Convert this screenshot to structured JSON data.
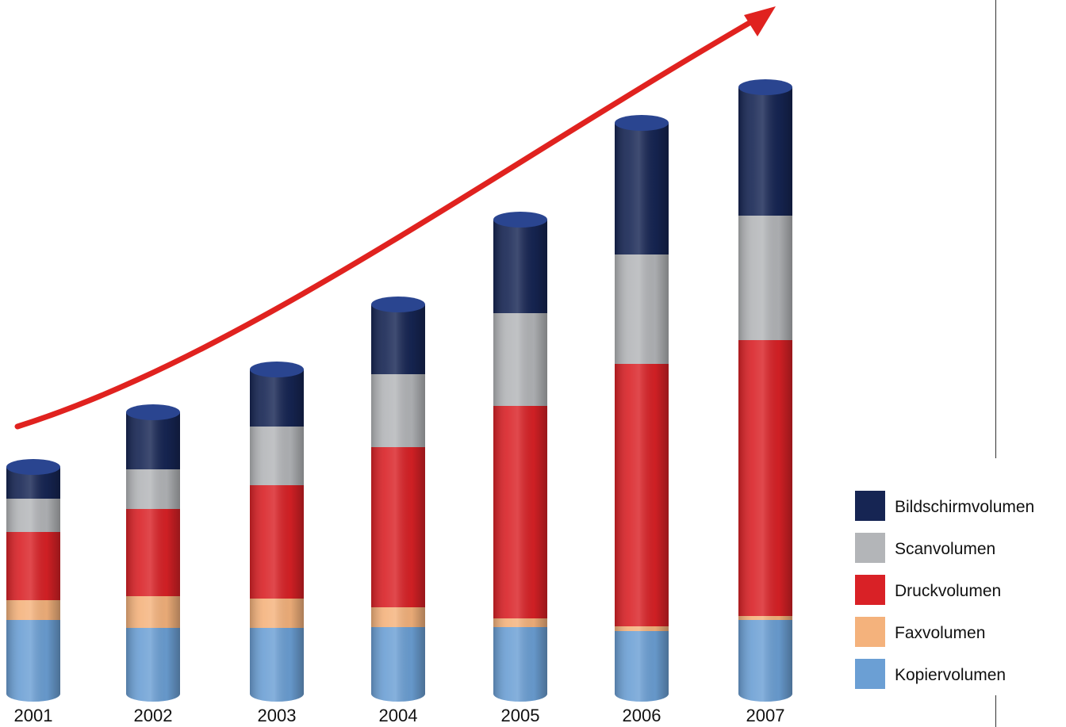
{
  "chart_data": {
    "type": "bar",
    "stacked": true,
    "style": "3d-cylinder",
    "title": "",
    "xlabel": "",
    "ylabel": "",
    "categories": [
      "2001",
      "2002",
      "2003",
      "2004",
      "2005",
      "2006",
      "2007"
    ],
    "series": [
      {
        "name": "Kopiervolumen",
        "color": "#6b9fd4",
        "values": [
          93,
          83,
          83,
          84,
          84,
          79,
          93
        ]
      },
      {
        "name": "Faxvolumen",
        "color": "#f4b27c",
        "values": [
          25,
          40,
          37,
          25,
          11,
          6,
          5
        ]
      },
      {
        "name": "Druckvolumen",
        "color": "#d92126",
        "values": [
          86,
          110,
          143,
          202,
          268,
          331,
          348
        ]
      },
      {
        "name": "Scanvolumen",
        "color": "#b3b5b8",
        "values": [
          42,
          50,
          74,
          92,
          117,
          138,
          157
        ]
      },
      {
        "name": "Bildschirmvolumen",
        "color": "#162553",
        "values": [
          40,
          72,
          72,
          88,
          118,
          166,
          162
        ]
      }
    ],
    "ylim": [
      0,
      800
    ],
    "grid": false,
    "legend_position": "bottom-right",
    "trend_arrow": {
      "color": "#e0221f",
      "direction": "up"
    }
  }
}
